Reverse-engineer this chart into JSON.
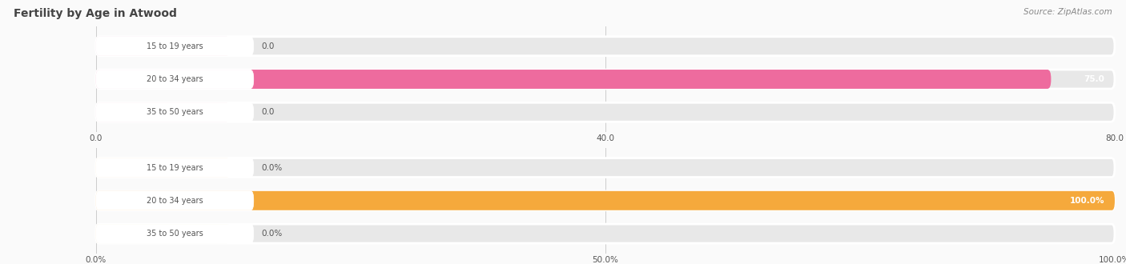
{
  "title": "Fertility by Age in Atwood",
  "source": "Source: ZipAtlas.com",
  "top_chart": {
    "categories": [
      "15 to 19 years",
      "20 to 34 years",
      "35 to 50 years"
    ],
    "values": [
      0.0,
      75.0,
      0.0
    ],
    "xlim": [
      0,
      80
    ],
    "xticks": [
      0.0,
      40.0,
      80.0
    ],
    "bar_color": "#EE6B9E",
    "bar_color_light": "#F0A0BC",
    "zero_bar_color": "#F2BECE"
  },
  "bottom_chart": {
    "categories": [
      "15 to 19 years",
      "20 to 34 years",
      "35 to 50 years"
    ],
    "values": [
      0.0,
      100.0,
      0.0
    ],
    "xlim": [
      0,
      100
    ],
    "xticks": [
      0.0,
      50.0,
      100.0
    ],
    "xticklabels": [
      "0.0%",
      "50.0%",
      "100.0%"
    ],
    "bar_color": "#F5A93C",
    "bar_color_light": "#F8C97A",
    "zero_bar_color": "#FAD9A0"
  },
  "bar_bg_color": "#E8E8E8",
  "fig_bg": "#FAFAFA",
  "label_pill_color": "#FFFFFF",
  "text_color": "#555555",
  "title_color": "#444444",
  "source_color": "#888888",
  "grid_color": "#CCCCCC"
}
